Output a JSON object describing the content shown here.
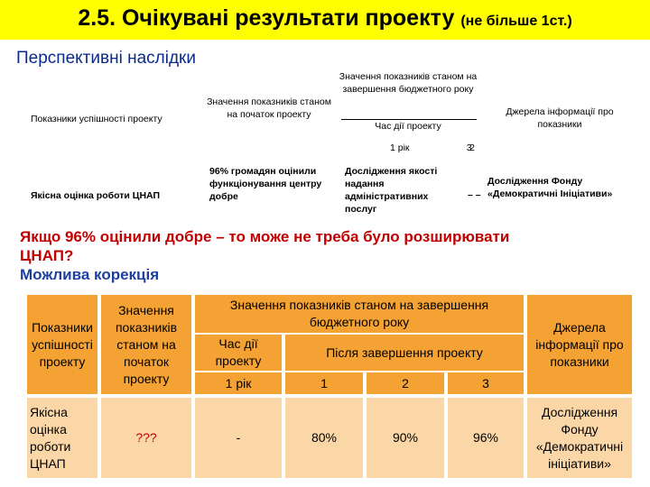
{
  "slide": {
    "title_main": "2.5. Очікувані результати проекту",
    "title_note": "(не більше 1ст.)",
    "subtitle": "Перспективні наслідки"
  },
  "upper_table": {
    "h_indicators": "Показники успішності проекту",
    "h_start": "Значення показників станом на початок проекту",
    "h_end": "Значення показників станом на завершення бюджетного року",
    "h_duration": "Час дії проекту",
    "h_sources": "Джерела інформації про показники",
    "year_label": "1 рік",
    "overlap_label": "2 3",
    "row_indicator": "Якісна оцінка роботи ЦНАП",
    "row_start": "96% громадян оцінили функціонування центру добре",
    "row_end": "Дослідження якості надання адміністративних послуг",
    "row_dash": "– –",
    "row_source": "Дослідження Фонду «Демократичні Ініціативи»"
  },
  "note": {
    "line1": "Якщо 96% оцінили добре – то може не треба було розширювати",
    "line2": "ЦНАП?",
    "line3": "Можлива корекція"
  },
  "lower_table": {
    "h_indicators": "Показники успішності проекту",
    "h_start": "Значення показників станом на початок проекту",
    "h_end": "Значення показників станом на завершення бюджетного року",
    "h_duration": "Час дії проекту",
    "h_after": "Після завершення проекту",
    "h_sources": "Джерела інформації про показники",
    "year1": "1 рік",
    "after_cols": [
      "1",
      "2",
      "3"
    ],
    "row_indicator": "Якісна оцінка роботи ЦНАП",
    "row_start": "???",
    "row_duration": "-",
    "row_after": [
      "80%",
      "90%",
      "96%"
    ],
    "row_source": "Дослідження Фонду «Демократичні ініціативи»"
  },
  "colors": {
    "title_bg": "#ffff00",
    "orange": "#f7a844",
    "pale_orange": "#fbd7a8",
    "red_text": "#c00000",
    "blue_text": "#1f3fa0"
  }
}
